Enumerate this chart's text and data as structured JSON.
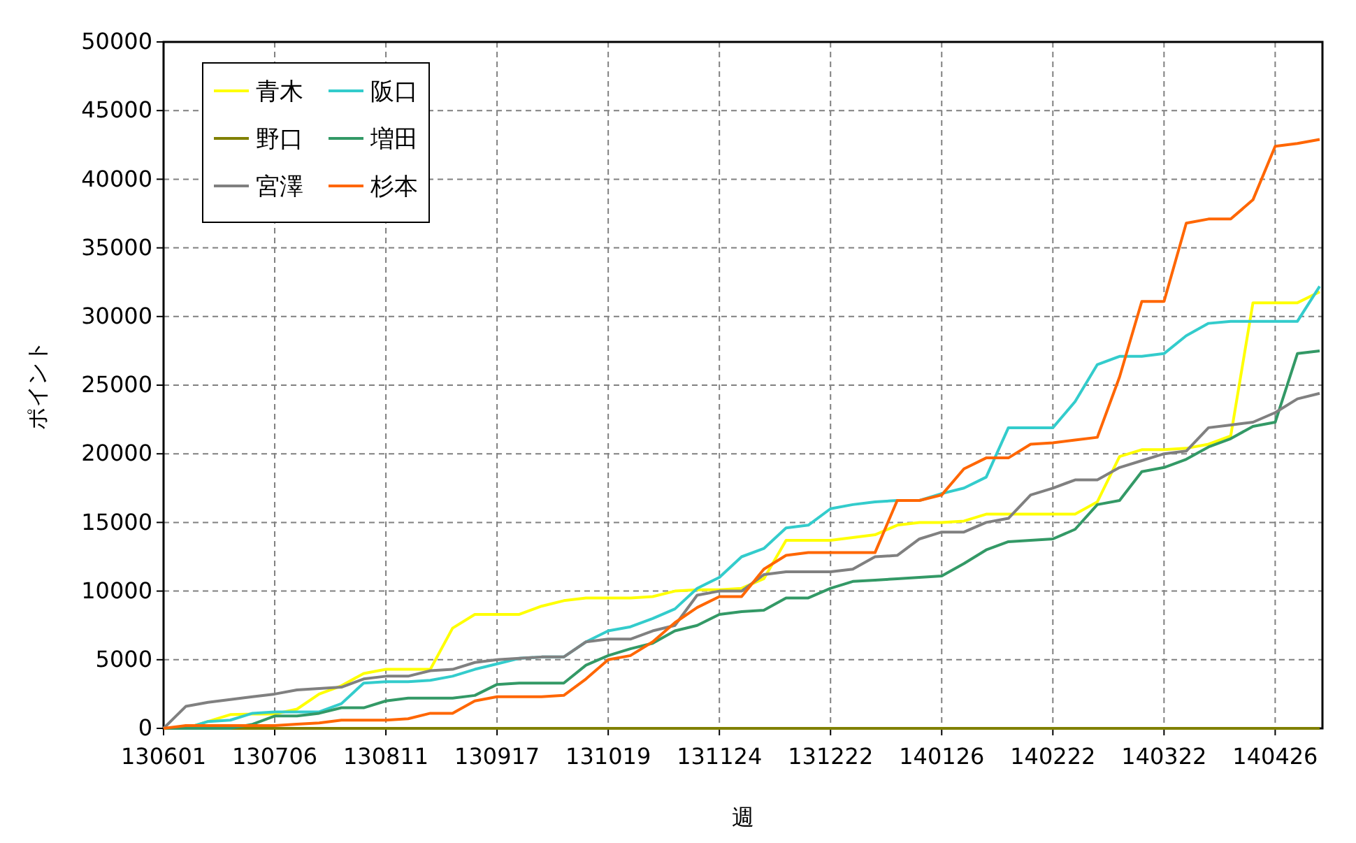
{
  "chart_data": {
    "type": "line",
    "xlabel": "週",
    "ylabel": "ポイント",
    "categories": [
      "130601",
      null,
      null,
      null,
      null,
      "130706",
      null,
      null,
      null,
      null,
      "130811",
      null,
      null,
      null,
      null,
      "130917",
      null,
      null,
      null,
      null,
      "131019",
      null,
      null,
      null,
      null,
      "131124",
      null,
      null,
      null,
      null,
      "131222",
      null,
      null,
      null,
      null,
      "140126",
      null,
      null,
      null,
      null,
      "140222",
      null,
      null,
      null,
      null,
      "140322",
      null,
      null,
      null,
      null,
      "140426",
      null,
      null
    ],
    "ylim": [
      0,
      50000
    ],
    "yticks": [
      0,
      5000,
      10000,
      15000,
      20000,
      25000,
      30000,
      35000,
      40000,
      45000,
      50000
    ],
    "grid": true,
    "legend": "top left",
    "line_style": "solid",
    "marker": "none",
    "series": [
      {
        "name": "青木",
        "color": "#ffff00",
        "values": [
          0,
          0,
          500,
          1000,
          1050,
          1050,
          1400,
          2500,
          3100,
          4000,
          4300,
          4300,
          4300,
          7300,
          8300,
          8300,
          8300,
          8900,
          9300,
          9500,
          9500,
          9500,
          9600,
          10000,
          10100,
          10100,
          10200,
          10900,
          13700,
          13700,
          13700,
          13900,
          14100,
          14800,
          15000,
          15000,
          15100,
          15600,
          15600,
          15600,
          15600,
          15600,
          16500,
          19800,
          20300,
          20300,
          20400,
          20700,
          21300,
          31000,
          31000,
          31000,
          31800
        ]
      },
      {
        "name": "阪口",
        "color": "#33cccc",
        "values": [
          0,
          0,
          500,
          600,
          1100,
          1200,
          1200,
          1200,
          1800,
          3300,
          3400,
          3400,
          3500,
          3800,
          4300,
          4700,
          5100,
          5200,
          5200,
          6300,
          7100,
          7400,
          8000,
          8700,
          10200,
          11000,
          12500,
          13100,
          14600,
          14800,
          16000,
          16300,
          16500,
          16600,
          16600,
          17100,
          17500,
          18300,
          21900,
          21900,
          21900,
          23800,
          26500,
          27100,
          27100,
          27300,
          28600,
          29500,
          29650,
          29650,
          29650,
          29650,
          32200
        ]
      },
      {
        "name": "野口",
        "color": "#808000",
        "values": [
          0,
          0,
          0,
          0,
          0,
          0,
          0,
          0,
          0,
          0,
          0,
          0,
          0,
          0,
          0,
          0,
          0,
          0,
          0,
          0,
          0,
          0,
          0,
          0,
          0,
          0,
          0,
          0,
          0,
          0,
          0,
          0,
          0,
          0,
          0,
          0,
          0,
          0,
          0,
          0,
          0,
          0,
          0,
          0,
          0,
          0,
          0,
          0,
          0,
          0,
          0,
          0,
          0
        ]
      },
      {
        "name": "増田",
        "color": "#339966",
        "values": [
          0,
          0,
          0,
          0,
          300,
          900,
          900,
          1100,
          1500,
          1500,
          2000,
          2200,
          2200,
          2200,
          2400,
          3200,
          3300,
          3300,
          3300,
          4600,
          5300,
          5800,
          6200,
          7100,
          7500,
          8300,
          8500,
          8600,
          9500,
          9500,
          10200,
          10700,
          10800,
          10900,
          11000,
          11100,
          12000,
          13000,
          13600,
          13700,
          13800,
          14500,
          16300,
          16600,
          18700,
          19000,
          19600,
          20500,
          21100,
          22000,
          22300,
          27300,
          27500
        ]
      },
      {
        "name": "宮澤",
        "color": "#808080",
        "values": [
          0,
          1600,
          1900,
          2100,
          2300,
          2500,
          2800,
          2900,
          3000,
          3600,
          3800,
          3800,
          4200,
          4300,
          4800,
          5000,
          5100,
          5200,
          5200,
          6300,
          6500,
          6500,
          7100,
          7500,
          9700,
          10000,
          10000,
          11200,
          11400,
          11400,
          11400,
          11600,
          12500,
          12600,
          13800,
          14300,
          14300,
          15000,
          15300,
          17000,
          17500,
          18100,
          18100,
          19000,
          19500,
          20000,
          20200,
          21900,
          22100,
          22300,
          23000,
          24000,
          24400
        ]
      },
      {
        "name": "杉本",
        "color": "#ff6600",
        "values": [
          0,
          200,
          200,
          200,
          200,
          200,
          300,
          400,
          600,
          600,
          600,
          700,
          1100,
          1100,
          2000,
          2300,
          2300,
          2300,
          2400,
          3600,
          5000,
          5300,
          6300,
          7700,
          8800,
          9600,
          9600,
          11600,
          12600,
          12800,
          12800,
          12800,
          12800,
          16600,
          16600,
          17000,
          18900,
          19700,
          19700,
          20700,
          20800,
          21000,
          21200,
          25600,
          31100,
          31100,
          36800,
          37100,
          37100,
          38500,
          42400,
          42600,
          42900
        ]
      }
    ]
  }
}
